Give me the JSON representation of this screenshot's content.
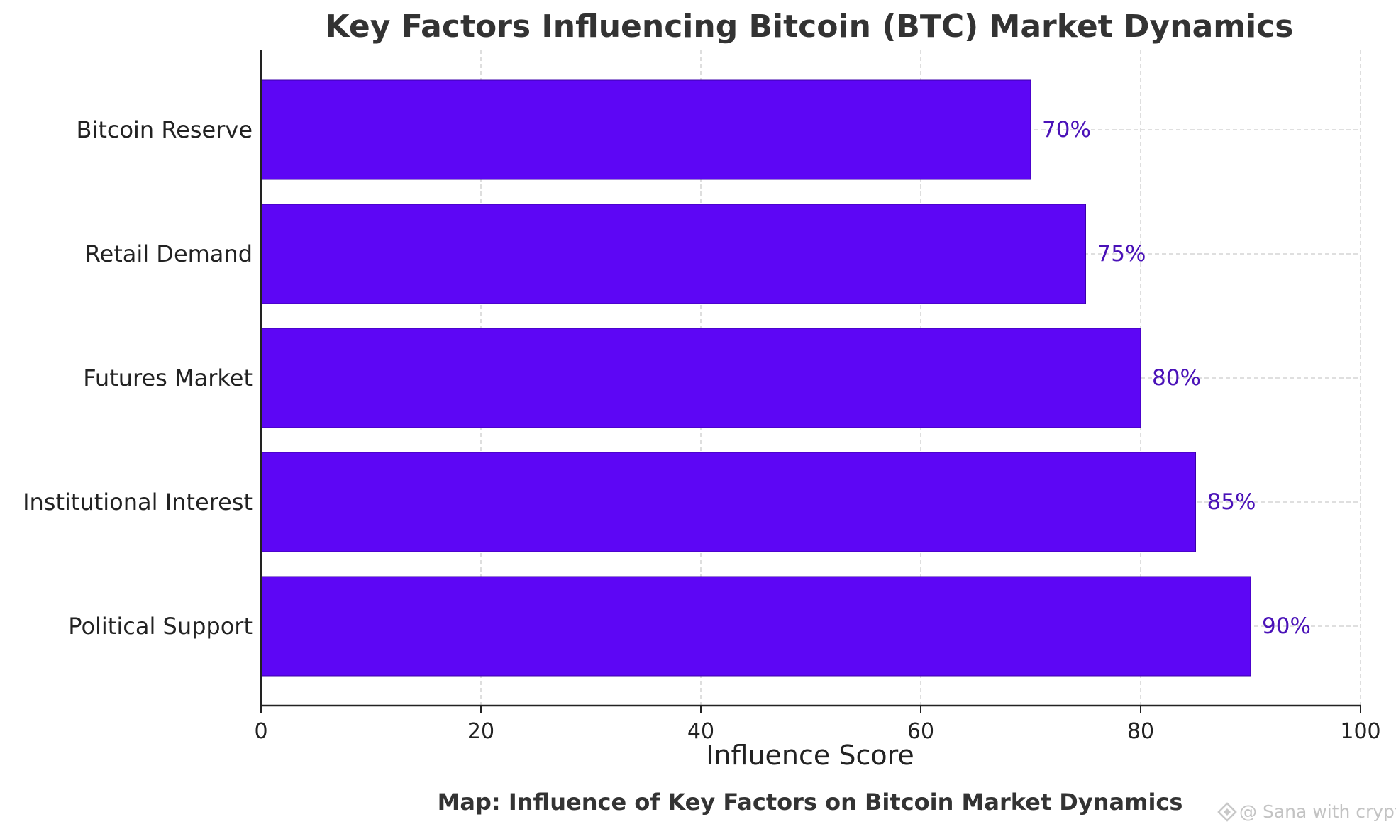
{
  "chart_data": {
    "type": "bar",
    "orientation": "horizontal",
    "title": "Key Factors Influencing Bitcoin (BTC) Market Dynamics",
    "subtitle": "Map: Influence of Key Factors on Bitcoin Market Dynamics",
    "xlabel": "Influence Score",
    "ylabel": "",
    "categories": [
      "Political Support",
      "Institutional Interest",
      "Futures Market",
      "Retail Demand",
      "Bitcoin Reserve"
    ],
    "values": [
      90,
      85,
      80,
      75,
      70
    ],
    "data_labels": [
      "90%",
      "85%",
      "80%",
      "75%",
      "70%"
    ],
    "xlim": [
      0,
      100
    ],
    "xticks": [
      0,
      20,
      40,
      60,
      80,
      100
    ],
    "xtick_labels": [
      "0",
      "20",
      "40",
      "60",
      "80",
      "100"
    ],
    "grid": true,
    "bar_color": "#5d06f5",
    "label_color": "#4a12b8",
    "watermark": "@ Sana with crypto"
  }
}
